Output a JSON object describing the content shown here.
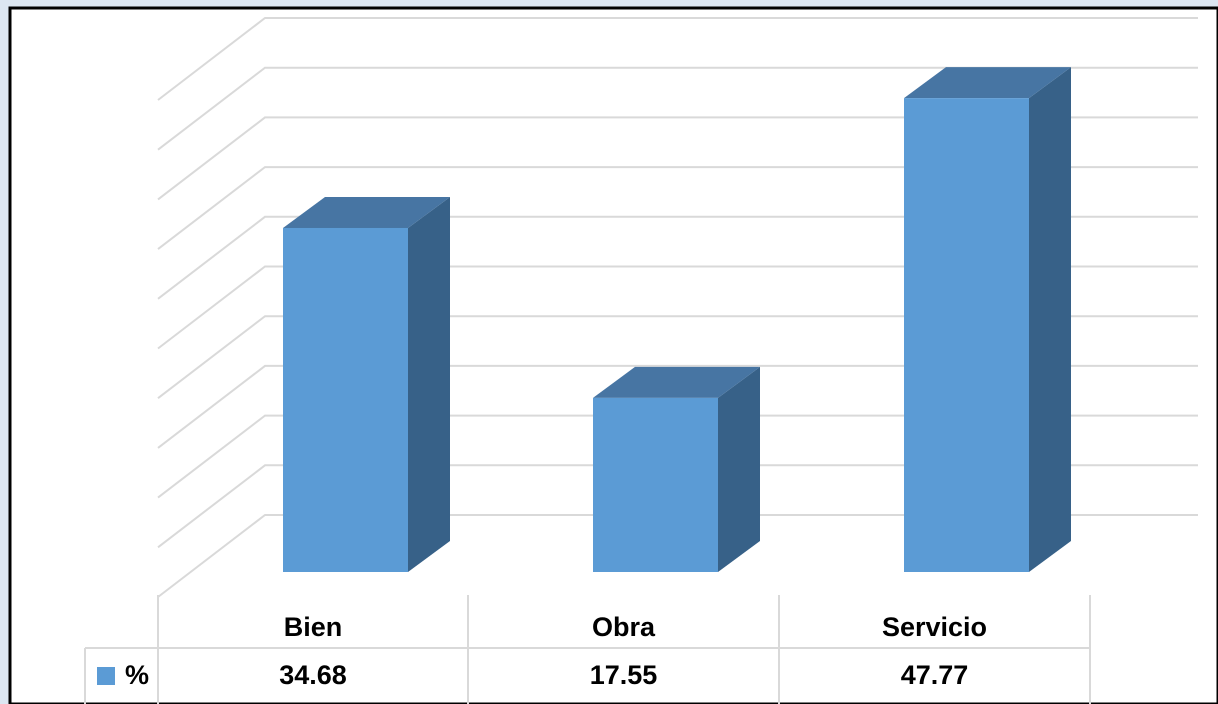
{
  "chart_data": {
    "type": "bar3d",
    "categories": [
      "Bien",
      "Obra",
      "Servicio"
    ],
    "series": [
      {
        "name": "%",
        "color": "#5b9bd5",
        "values": [
          34.68,
          17.55,
          47.77
        ]
      }
    ],
    "ylim": [
      0,
      50
    ],
    "yticks": [
      0,
      5,
      10,
      15,
      20,
      25,
      30,
      35,
      40,
      45,
      50
    ],
    "grid": true,
    "data_table": true
  }
}
